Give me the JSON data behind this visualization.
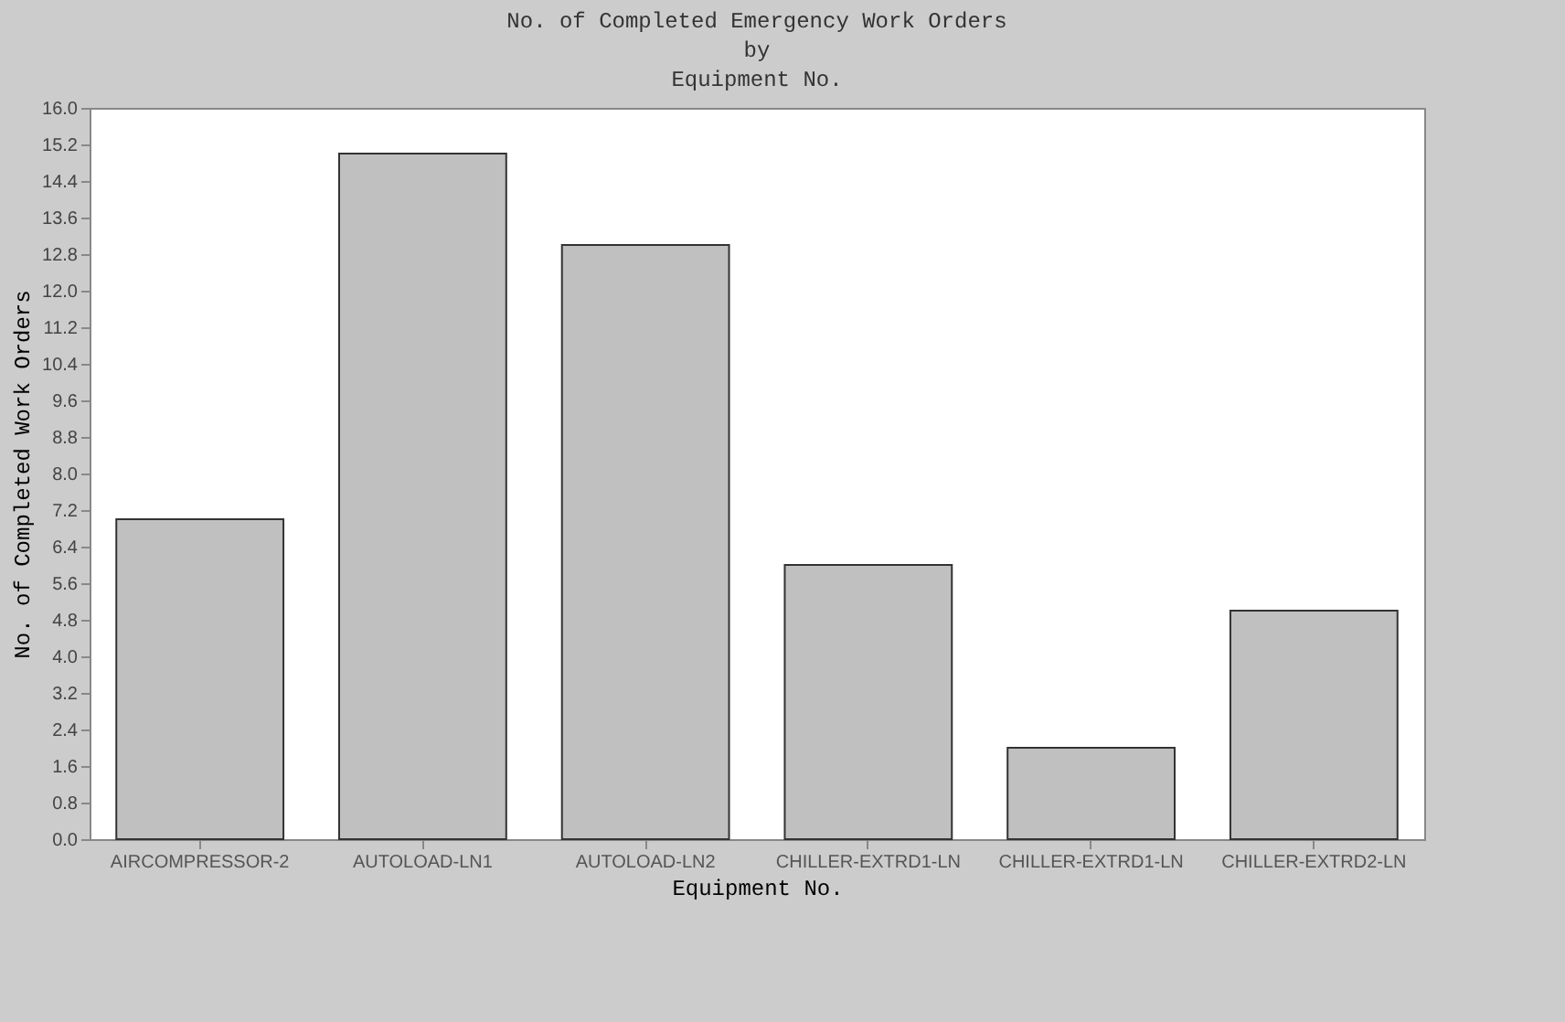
{
  "chart_data": {
    "type": "bar",
    "title": "No. of Completed Emergency Work Orders\nby\nEquipment No.",
    "xlabel": "Equipment No.",
    "ylabel": "No. of Completed Work Orders",
    "categories": [
      "AIRCOMPRESSOR-2",
      "AUTOLOAD-LN1",
      "AUTOLOAD-LN2",
      "CHILLER-EXTRD1-LN",
      "CHILLER-EXTRD1-LN",
      "CHILLER-EXTRD2-LN"
    ],
    "values": [
      7,
      15,
      13,
      6,
      2,
      5
    ],
    "color": "#c0c0c0",
    "ylim": [
      0,
      16
    ],
    "yticks": [
      {
        "value": 0,
        "label": "0.0"
      },
      0.8,
      1.6,
      2.4,
      3.2,
      {
        "value": 4,
        "label": "4.0"
      },
      4.8,
      5.6,
      6.4,
      7.2,
      {
        "value": 8,
        "label": "8.0"
      },
      8.8,
      9.6,
      10.4,
      11.2,
      {
        "value": 12,
        "label": "12.0"
      },
      12.8,
      13.6,
      14.4,
      15.2,
      {
        "value": 16,
        "label": "16.0"
      }
    ],
    "grid": false
  }
}
